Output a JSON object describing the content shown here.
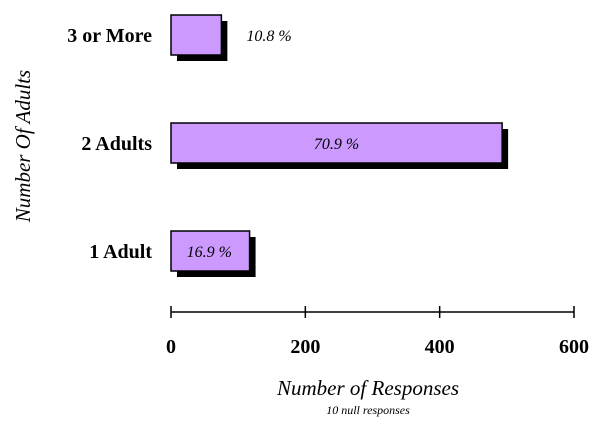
{
  "chart_data": {
    "type": "bar",
    "orientation": "horizontal",
    "categories": [
      "1 Adult",
      "2 Adults",
      "3 or More"
    ],
    "values": [
      117,
      493,
      75
    ],
    "data_labels": [
      "16.9 %",
      "70.9 %",
      "10.8 %"
    ],
    "xlabel": "Number of Responses",
    "xnote": "10 null responses",
    "ylabel": "Number Of Adults",
    "xlim": [
      0,
      600
    ],
    "xticks": [
      0,
      200,
      400,
      600
    ],
    "grid": false,
    "legend": "none",
    "colors": {
      "bar": "#cc99ff",
      "shadow": "#000000",
      "outline": "#000000"
    }
  }
}
